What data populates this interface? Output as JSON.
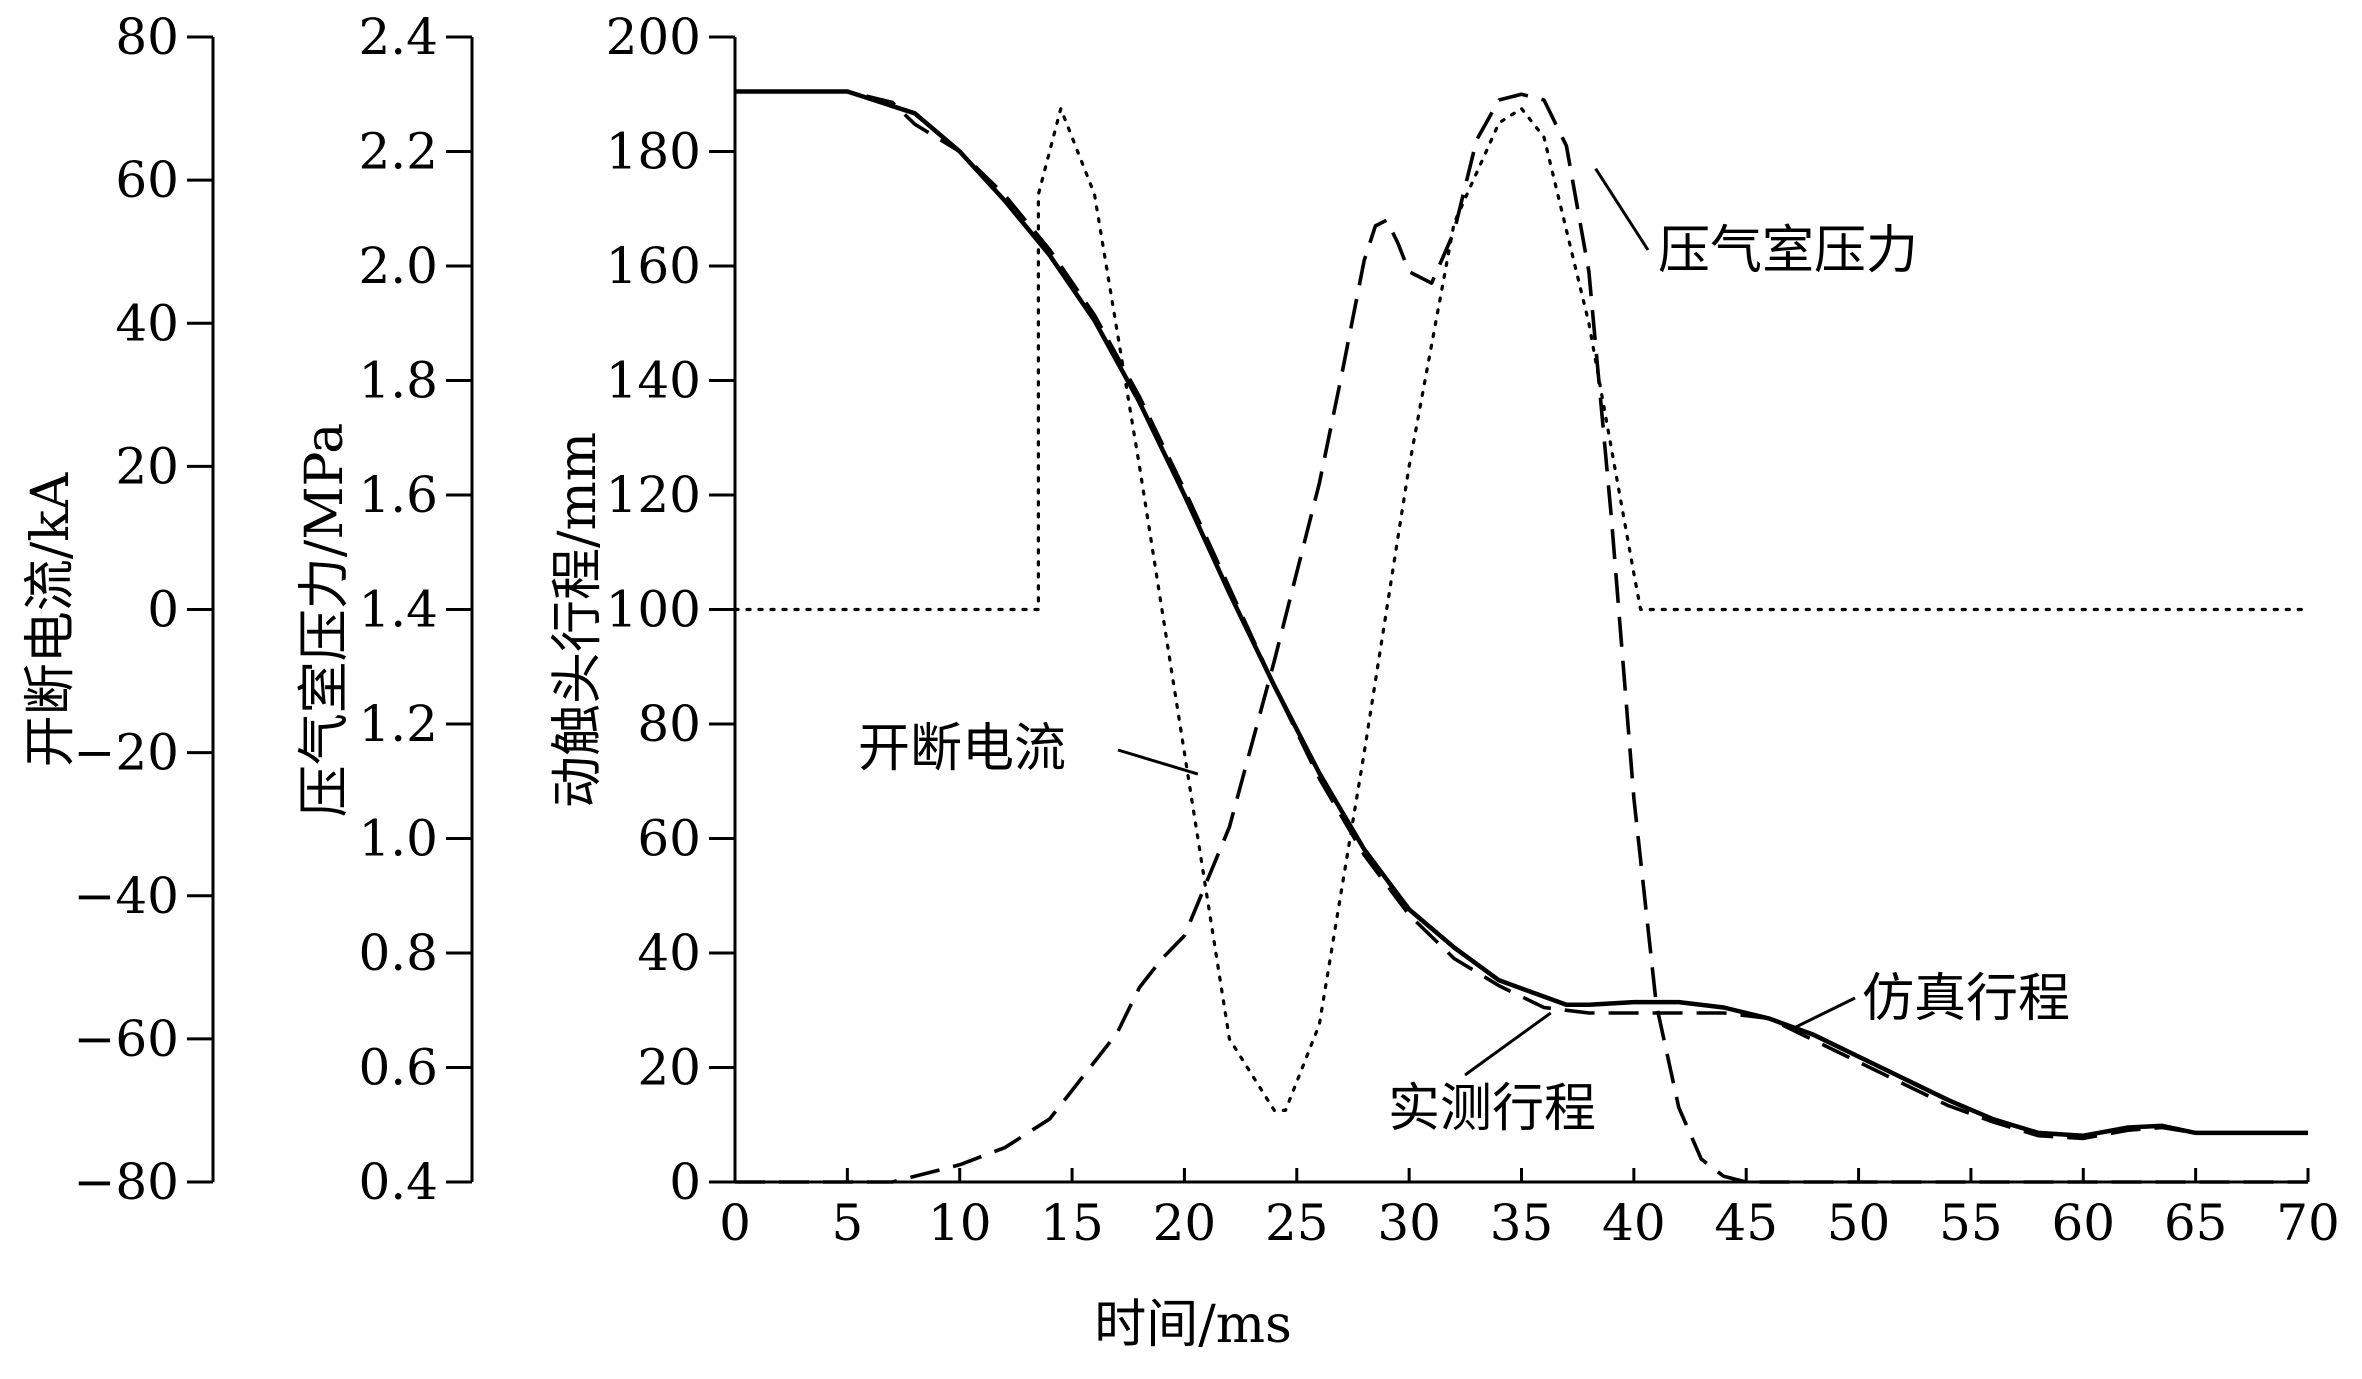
{
  "chart_data": {
    "type": "line",
    "xlabel": "时间/ms",
    "xlim": [
      0,
      70
    ],
    "x_ticks": [
      "0",
      "5",
      "10",
      "15",
      "20",
      "25",
      "30",
      "35",
      "40",
      "45",
      "50",
      "55",
      "60",
      "65",
      "70"
    ],
    "axes": {
      "current": {
        "label": "开断电流/kA",
        "range": [
          -80,
          80
        ],
        "tick_labels": [
          "80",
          "60",
          "40",
          "20",
          "0",
          "−20",
          "−40",
          "−60",
          "−80"
        ]
      },
      "pressure": {
        "label": "压气室压力/MPa",
        "range": [
          0.4,
          2.4
        ],
        "tick_labels": [
          "2.4",
          "2.2",
          "2.0",
          "1.8",
          "1.6",
          "1.4",
          "1.2",
          "1.0",
          "0.8",
          "0.6",
          "0.4"
        ]
      },
      "travel": {
        "label": "动触头行程/mm",
        "range": [
          -10,
          200
        ],
        "tick_labels": [
          "200",
          "180",
          "160",
          "140",
          "120",
          "100",
          "80",
          "60",
          "40",
          "20",
          "0"
        ]
      }
    },
    "series": [
      {
        "name": "仿真行程",
        "axis": "travel",
        "style": "solid",
        "x": [
          0,
          5,
          8,
          10,
          12,
          14,
          16,
          18,
          20,
          22,
          24,
          26,
          28,
          30,
          32,
          34,
          36,
          37,
          38,
          40,
          42,
          44,
          46,
          48,
          50,
          52,
          54,
          56,
          58,
          60,
          62,
          63.5,
          65,
          70
        ],
        "y": [
          190,
          190,
          186,
          179,
          170,
          160,
          148,
          133,
          116,
          98,
          81,
          65,
          51,
          40,
          33,
          27,
          24,
          22.5,
          22.5,
          23,
          23,
          22,
          20,
          17,
          13,
          9,
          5,
          1.5,
          -1,
          -1.5,
          0,
          0.3,
          -1,
          -1
        ]
      },
      {
        "name": "实测行程",
        "axis": "travel",
        "style": "dashed",
        "x": [
          0,
          5,
          7,
          8,
          10,
          12,
          14,
          16,
          18,
          20,
          22,
          24,
          26,
          28,
          30,
          32,
          34,
          36,
          38,
          40,
          42,
          44,
          46,
          48,
          50,
          52,
          54,
          56,
          58,
          60,
          62,
          63.5,
          65,
          70
        ],
        "y": [
          190,
          190,
          188,
          184,
          179,
          171,
          161,
          149,
          134,
          117,
          99,
          81,
          64,
          50,
          39,
          31,
          26,
          22,
          21,
          21,
          21,
          21,
          20,
          16,
          12,
          8,
          4,
          1,
          -1.5,
          -2,
          -0.5,
          0,
          -1,
          -1
        ]
      },
      {
        "name": "开断电流",
        "axis": "current",
        "style": "dotted",
        "x": [
          0,
          13.5,
          13.5,
          14.5,
          16,
          18,
          20,
          22,
          24,
          24.5,
          26,
          28,
          30,
          32,
          34,
          35,
          36,
          38,
          40,
          40.3,
          40.5,
          70
        ],
        "y": [
          0,
          0,
          58,
          70,
          58,
          20,
          -20,
          -60,
          -70,
          -70,
          -58,
          -20,
          20,
          54,
          68,
          70,
          66,
          40,
          5,
          0,
          0,
          0
        ]
      },
      {
        "name": "压气室压力",
        "axis": "pressure",
        "style": "dashed",
        "x": [
          0,
          5,
          7,
          10,
          12,
          14,
          15,
          17,
          18,
          19,
          20,
          22,
          24,
          26,
          27,
          28,
          28.5,
          29,
          29.5,
          30,
          31,
          32,
          33,
          34,
          35,
          36,
          37,
          38,
          39,
          40,
          41,
          42,
          43,
          44,
          45,
          50,
          70
        ],
        "y": [
          0.4,
          0.4,
          0.4,
          0.43,
          0.46,
          0.51,
          0.56,
          0.66,
          0.74,
          0.79,
          0.83,
          1.02,
          1.31,
          1.62,
          1.81,
          2.01,
          2.07,
          2.08,
          2.04,
          1.99,
          1.97,
          2.06,
          2.22,
          2.29,
          2.3,
          2.29,
          2.21,
          1.99,
          1.56,
          1.07,
          0.71,
          0.53,
          0.44,
          0.41,
          0.4,
          0.4,
          0.4
        ]
      }
    ],
    "annotations": [
      "压气室压力",
      "开断电流",
      "仿真行程",
      "实测行程"
    ]
  }
}
